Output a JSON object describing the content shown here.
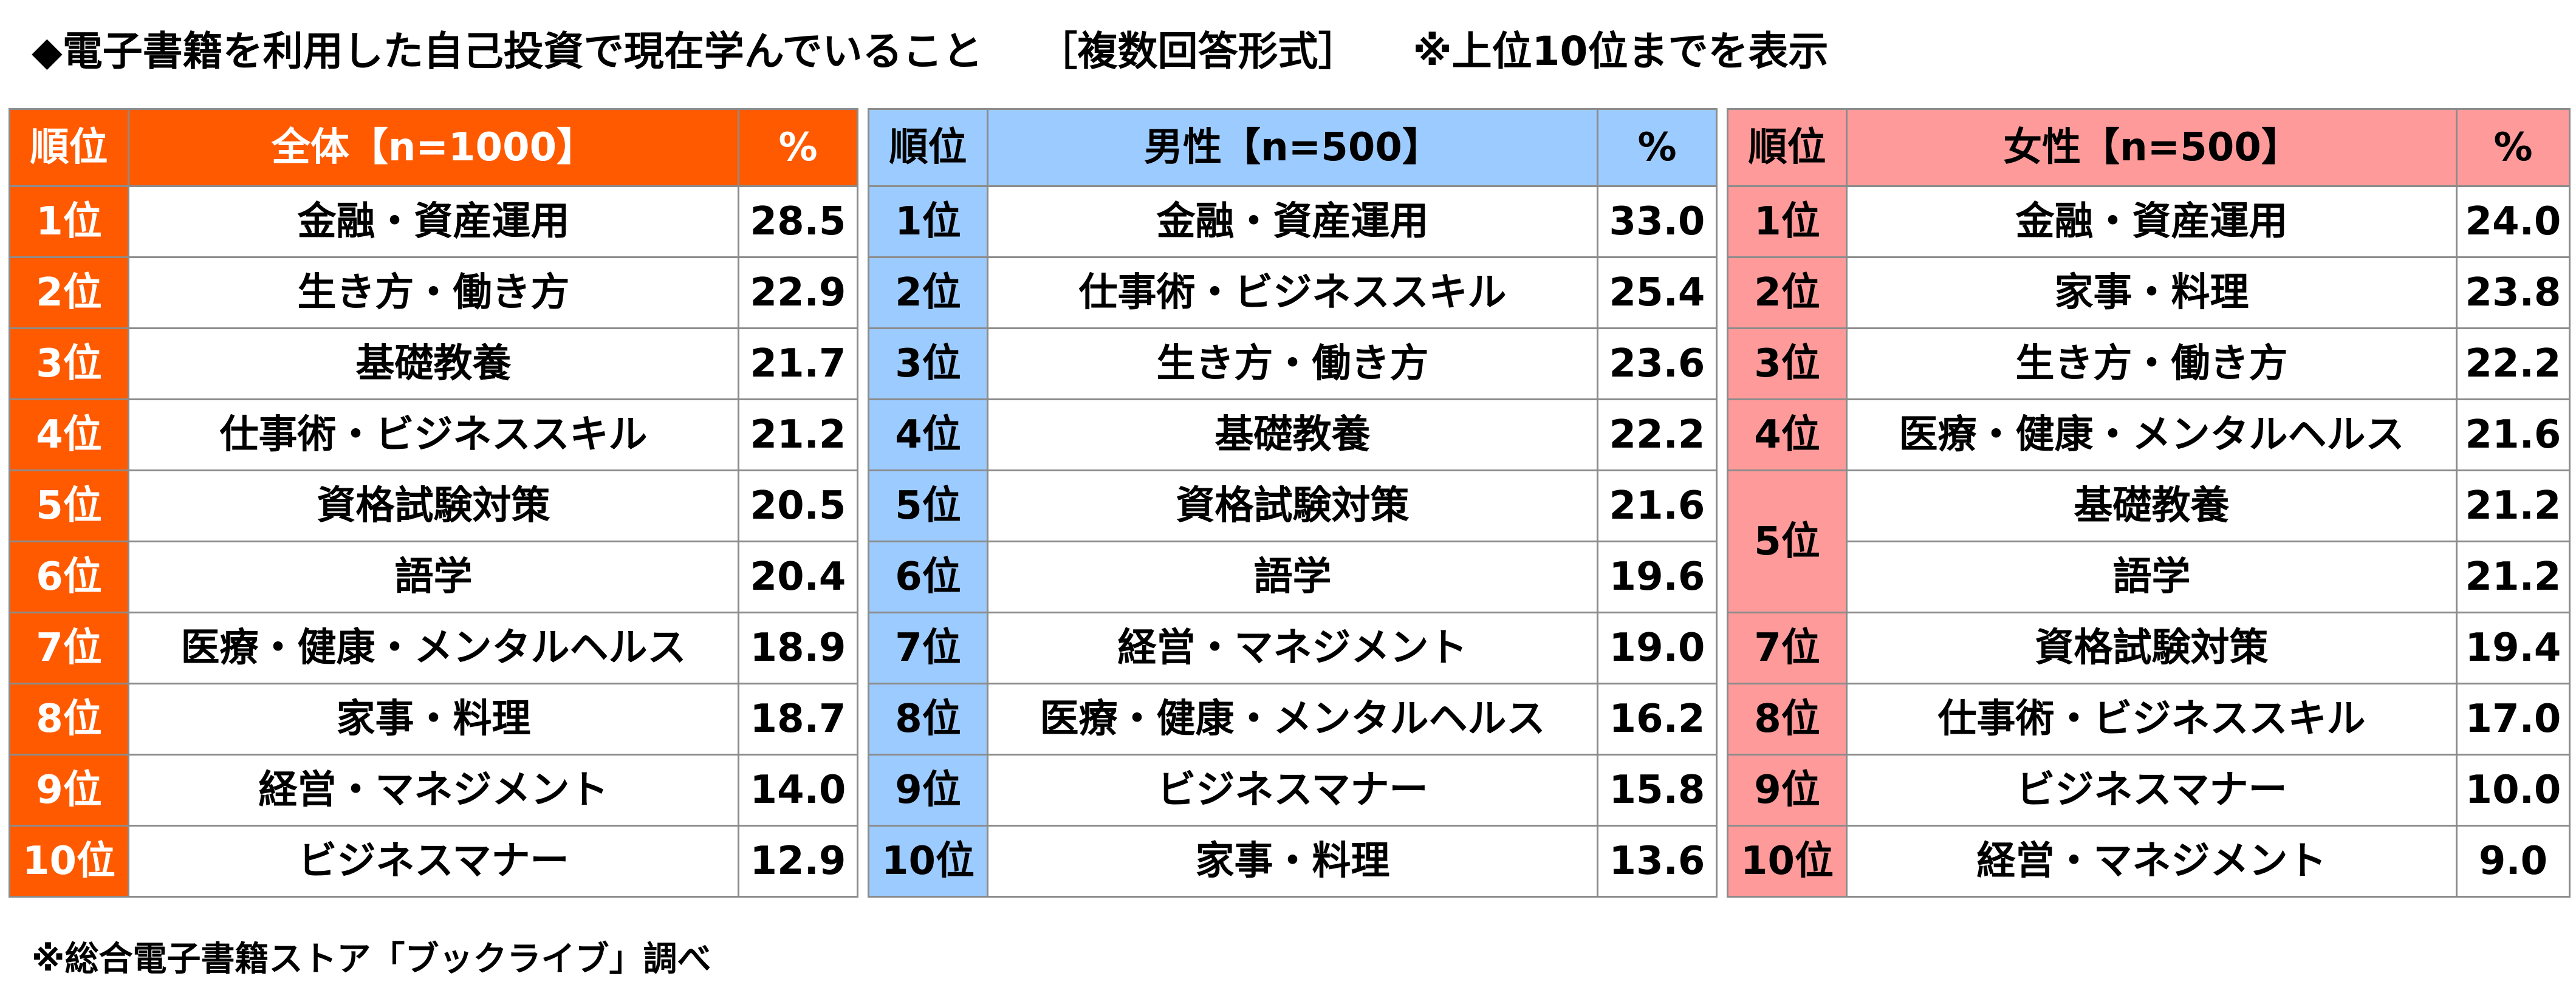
{
  "title_parts": [
    "◆電子書籍を利用した自己投資で現在学んでいること",
    "［複数回答形式］",
    "※上位10位までを表示"
  ],
  "footnote": "※総合電子書籍ストア「ブックライブ」調べ",
  "colors": {
    "all_header": "#ff5a00",
    "male_header": "#9ccbff",
    "female_header": "#ff9a9a",
    "border": "#8c8c8c"
  },
  "chart_data": [
    {
      "type": "table",
      "headers": [
        "順位",
        "全体【n=1000】",
        "%"
      ],
      "rows": [
        {
          "rank": "1位",
          "item": "金融・資産運用",
          "value": "28.5"
        },
        {
          "rank": "2位",
          "item": "生き方・働き方",
          "value": "22.9"
        },
        {
          "rank": "3位",
          "item": "基礎教養",
          "value": "21.7"
        },
        {
          "rank": "4位",
          "item": "仕事術・ビジネススキル",
          "value": "21.2"
        },
        {
          "rank": "5位",
          "item": "資格試験対策",
          "value": "20.5"
        },
        {
          "rank": "6位",
          "item": "語学",
          "value": "20.4"
        },
        {
          "rank": "7位",
          "item": "医療・健康・メンタルヘルス",
          "value": "18.9"
        },
        {
          "rank": "8位",
          "item": "家事・料理",
          "value": "18.7"
        },
        {
          "rank": "9位",
          "item": "経営・マネジメント",
          "value": "14.0"
        },
        {
          "rank": "10位",
          "item": "ビジネスマナー",
          "value": "12.9"
        }
      ]
    },
    {
      "type": "table",
      "headers": [
        "順位",
        "男性【n=500】",
        "%"
      ],
      "rows": [
        {
          "rank": "1位",
          "item": "金融・資産運用",
          "value": "33.0"
        },
        {
          "rank": "2位",
          "item": "仕事術・ビジネススキル",
          "value": "25.4"
        },
        {
          "rank": "3位",
          "item": "生き方・働き方",
          "value": "23.6"
        },
        {
          "rank": "4位",
          "item": "基礎教養",
          "value": "22.2"
        },
        {
          "rank": "5位",
          "item": "資格試験対策",
          "value": "21.6"
        },
        {
          "rank": "6位",
          "item": "語学",
          "value": "19.6"
        },
        {
          "rank": "7位",
          "item": "経営・マネジメント",
          "value": "19.0"
        },
        {
          "rank": "8位",
          "item": "医療・健康・メンタルヘルス",
          "value": "16.2"
        },
        {
          "rank": "9位",
          "item": "ビジネスマナー",
          "value": "15.8"
        },
        {
          "rank": "10位",
          "item": "家事・料理",
          "value": "13.6"
        }
      ]
    },
    {
      "type": "table",
      "headers": [
        "順位",
        "女性【n=500】",
        "%"
      ],
      "rows": [
        {
          "rank": "1位",
          "item": "金融・資産運用",
          "value": "24.0"
        },
        {
          "rank": "2位",
          "item": "家事・料理",
          "value": "23.8"
        },
        {
          "rank": "3位",
          "item": "生き方・働き方",
          "value": "22.2"
        },
        {
          "rank": "4位",
          "item": "医療・健康・メンタルヘルス",
          "value": "21.6"
        },
        {
          "rank": "5位",
          "item": "基礎教養",
          "value": "21.2",
          "rank_rowspan": 2
        },
        {
          "rank": "5位",
          "item": "語学",
          "value": "21.2",
          "rank_merged": true
        },
        {
          "rank": "7位",
          "item": "資格試験対策",
          "value": "19.4"
        },
        {
          "rank": "8位",
          "item": "仕事術・ビジネススキル",
          "value": "17.0"
        },
        {
          "rank": "9位",
          "item": "ビジネスマナー",
          "value": "10.0"
        },
        {
          "rank": "10位",
          "item": "経営・マネジメント",
          "value": "9.0"
        }
      ]
    }
  ]
}
